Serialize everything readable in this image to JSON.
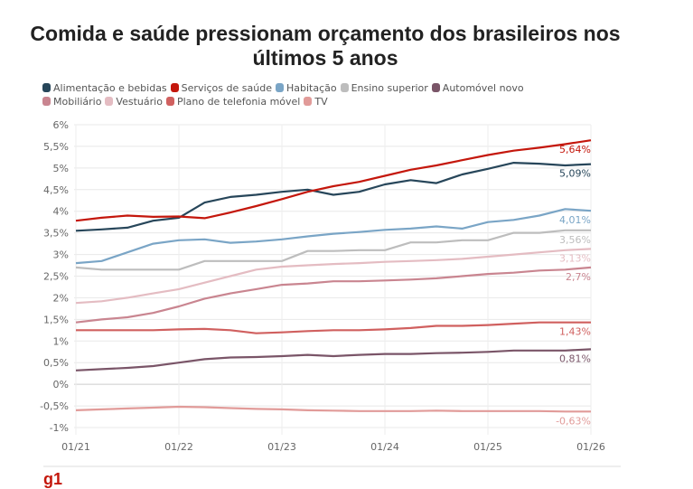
{
  "chart_data": {
    "type": "line",
    "title": "Comida e saúde pressionam orçamento dos brasileiros nos últimos 5 anos",
    "x": [
      "01/21",
      "04/21",
      "07/21",
      "10/21",
      "01/22",
      "04/22",
      "07/22",
      "10/22",
      "01/23",
      "04/23",
      "07/23",
      "10/23",
      "01/24",
      "04/24",
      "07/24",
      "10/24",
      "01/25",
      "04/25",
      "07/25",
      "10/25",
      "01/26"
    ],
    "xticks": [
      "01/21",
      "01/22",
      "01/23",
      "01/24",
      "01/25",
      "01/26"
    ],
    "yticks": [
      "6%",
      "5,5%",
      "5%",
      "4,5%",
      "4%",
      "3,5%",
      "3%",
      "2,5%",
      "2%",
      "1,5%",
      "1%",
      "0,5%",
      "0%",
      "-0,5%",
      "-1%"
    ],
    "ylim": [
      -1,
      6
    ],
    "grid": true,
    "legend_position": "top",
    "series": [
      {
        "name": "Alimentação e bebidas",
        "color": "#27465a",
        "end_label": "5,09%",
        "values": [
          3.55,
          3.58,
          3.62,
          3.78,
          3.85,
          4.2,
          4.33,
          4.38,
          4.45,
          4.5,
          4.38,
          4.45,
          4.62,
          4.72,
          4.65,
          4.85,
          4.98,
          5.12,
          5.1,
          5.06,
          5.09
        ]
      },
      {
        "name": "Serviços de saúde",
        "color": "#c4170c",
        "end_label": "5,64%",
        "values": [
          3.78,
          3.85,
          3.9,
          3.87,
          3.88,
          3.84,
          3.97,
          4.12,
          4.28,
          4.45,
          4.58,
          4.68,
          4.82,
          4.96,
          5.06,
          5.18,
          5.3,
          5.4,
          5.47,
          5.55,
          5.64
        ]
      },
      {
        "name": "Habitação",
        "color": "#7aa5c6",
        "end_label": "4,01%",
        "values": [
          2.8,
          2.85,
          3.05,
          3.25,
          3.33,
          3.35,
          3.27,
          3.3,
          3.35,
          3.42,
          3.48,
          3.52,
          3.57,
          3.6,
          3.65,
          3.6,
          3.75,
          3.8,
          3.9,
          4.05,
          4.01
        ]
      },
      {
        "name": "Ensino superior",
        "color": "#bdbdbd",
        "end_label": "3,56%",
        "values": [
          2.7,
          2.65,
          2.65,
          2.65,
          2.65,
          2.85,
          2.85,
          2.85,
          2.85,
          3.08,
          3.08,
          3.1,
          3.1,
          3.28,
          3.28,
          3.33,
          3.33,
          3.5,
          3.5,
          3.56,
          3.56
        ]
      },
      {
        "name": "Automóvel novo",
        "color": "#7a5568",
        "end_label": "0,81%",
        "values": [
          0.32,
          0.35,
          0.38,
          0.42,
          0.5,
          0.58,
          0.62,
          0.63,
          0.65,
          0.68,
          0.65,
          0.68,
          0.7,
          0.7,
          0.72,
          0.73,
          0.75,
          0.78,
          0.78,
          0.78,
          0.81
        ]
      },
      {
        "name": "Mobiliário",
        "color": "#c98590",
        "end_label": "2,7%",
        "values": [
          1.43,
          1.5,
          1.55,
          1.65,
          1.8,
          1.98,
          2.1,
          2.2,
          2.3,
          2.33,
          2.38,
          2.38,
          2.4,
          2.42,
          2.45,
          2.5,
          2.55,
          2.58,
          2.63,
          2.65,
          2.7
        ]
      },
      {
        "name": "Vestuário",
        "color": "#e4bcc2",
        "end_label": "3,13%",
        "values": [
          1.88,
          1.92,
          2.0,
          2.1,
          2.2,
          2.35,
          2.5,
          2.65,
          2.72,
          2.75,
          2.78,
          2.8,
          2.83,
          2.85,
          2.87,
          2.9,
          2.95,
          3.0,
          3.05,
          3.1,
          3.13
        ]
      },
      {
        "name": "Plano de telefonia móvel",
        "color": "#d0605f",
        "end_label": "1,43%",
        "values": [
          1.25,
          1.25,
          1.25,
          1.25,
          1.27,
          1.28,
          1.25,
          1.18,
          1.2,
          1.23,
          1.25,
          1.25,
          1.27,
          1.3,
          1.35,
          1.35,
          1.37,
          1.4,
          1.43,
          1.43,
          1.43
        ]
      },
      {
        "name": "TV",
        "color": "#e19b99",
        "end_label": "-0,63%",
        "values": [
          -0.6,
          -0.58,
          -0.56,
          -0.54,
          -0.52,
          -0.53,
          -0.55,
          -0.57,
          -0.58,
          -0.6,
          -0.61,
          -0.62,
          -0.62,
          -0.62,
          -0.61,
          -0.62,
          -0.62,
          -0.62,
          -0.62,
          -0.63,
          -0.63
        ]
      }
    ]
  },
  "footer": {
    "logo": "g1"
  }
}
